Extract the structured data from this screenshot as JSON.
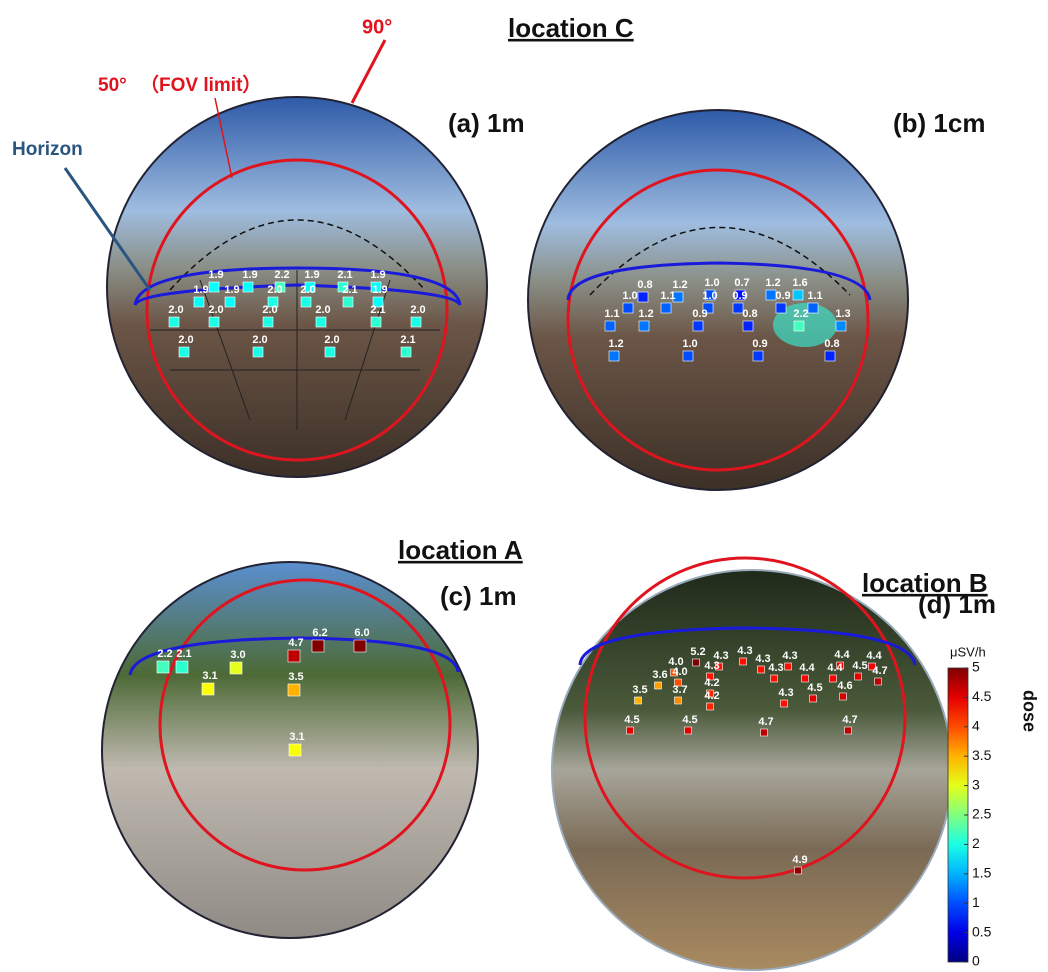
{
  "annotations": {
    "deg90": "90°",
    "deg50": "50°",
    "fov": "（FOV limit）",
    "horizon": "Horizon"
  },
  "panels": [
    {
      "location": "location C",
      "label": "(a) 1m",
      "values": [
        1.9,
        1.9,
        2.2,
        1.9,
        2.1,
        1.9,
        1.9,
        1.9,
        2.0,
        2.0,
        2.1,
        1.9,
        2.0,
        2.0,
        2.0,
        2.0,
        2.1,
        2.0,
        2.0,
        2.0,
        2.0,
        2.1
      ],
      "value_labels": [
        "1.9",
        "1.9",
        "2.2",
        "1.9",
        "2.1",
        "1.9",
        "1.9",
        "1.9",
        "2.0",
        "2.0",
        "2.1",
        "1.9",
        "2.0",
        "2.0",
        "2.0",
        "2.0",
        "2.1",
        "2.0",
        "2.0",
        "2.0",
        "2.0",
        "2.1"
      ]
    },
    {
      "label": "(b) 1cm",
      "values": [
        0.8,
        1.2,
        1.0,
        0.7,
        1.2,
        1.6,
        1.0,
        1.1,
        1.0,
        0.9,
        0.9,
        1.1,
        1.1,
        1.2,
        0.9,
        0.8,
        2.2,
        1.3,
        1.2,
        1.0,
        0.9,
        0.8
      ],
      "value_labels": [
        "0.8",
        "1.2",
        "1.0",
        "0.7",
        "1.2",
        "1.6",
        "1.0",
        "1.1",
        "1.0",
        "0.9",
        "0.9",
        "1.1",
        "1.1",
        "1.2",
        "0.9",
        "0.8",
        "2.2",
        "1.3",
        "1.2",
        "1.0",
        "0.9",
        "0.8"
      ]
    },
    {
      "location": "location A",
      "label": "(c) 1m",
      "values": [
        2.2,
        2.1,
        3.1,
        3.0,
        4.7,
        6.2,
        6.0,
        3.5,
        3.1
      ],
      "value_labels": [
        "2.2",
        "2.1",
        "3.1",
        "3.0",
        "4.7",
        "6.2",
        "6.0",
        "3.5",
        "3.1"
      ]
    },
    {
      "location": "location B",
      "label": "(d) 1m",
      "values": [
        5.2,
        4.3,
        4.3,
        4.0,
        4.3,
        3.6,
        4.0,
        4.2,
        3.5,
        3.7,
        4.2,
        4.3,
        4.3,
        4.4,
        4.4,
        4.3,
        4.4,
        4.4,
        4.5,
        4.7,
        4.3,
        4.5,
        4.6,
        4.5,
        4.5,
        4.7,
        4.7,
        4.9
      ],
      "value_labels": [
        "5.2",
        "4.3",
        "4.3",
        "4.0",
        "4.3",
        "3.6",
        "4.0",
        "4.2",
        "3.5",
        "3.7",
        "4.2",
        "4.3",
        "4.3",
        "4.4",
        "4.4",
        "4.3",
        "4.4",
        "4.4",
        "4.5",
        "4.7",
        "4.3",
        "4.5",
        "4.6",
        "4.5",
        "4.5",
        "4.7",
        "4.7",
        "4.9"
      ]
    }
  ],
  "colorbar": {
    "unit": "μSV/h",
    "title": "dose",
    "lim": [
      0,
      5
    ],
    "ticks": [
      0,
      0.5,
      1,
      1.5,
      2,
      2.5,
      3,
      3.5,
      4,
      4.5,
      5
    ]
  }
}
